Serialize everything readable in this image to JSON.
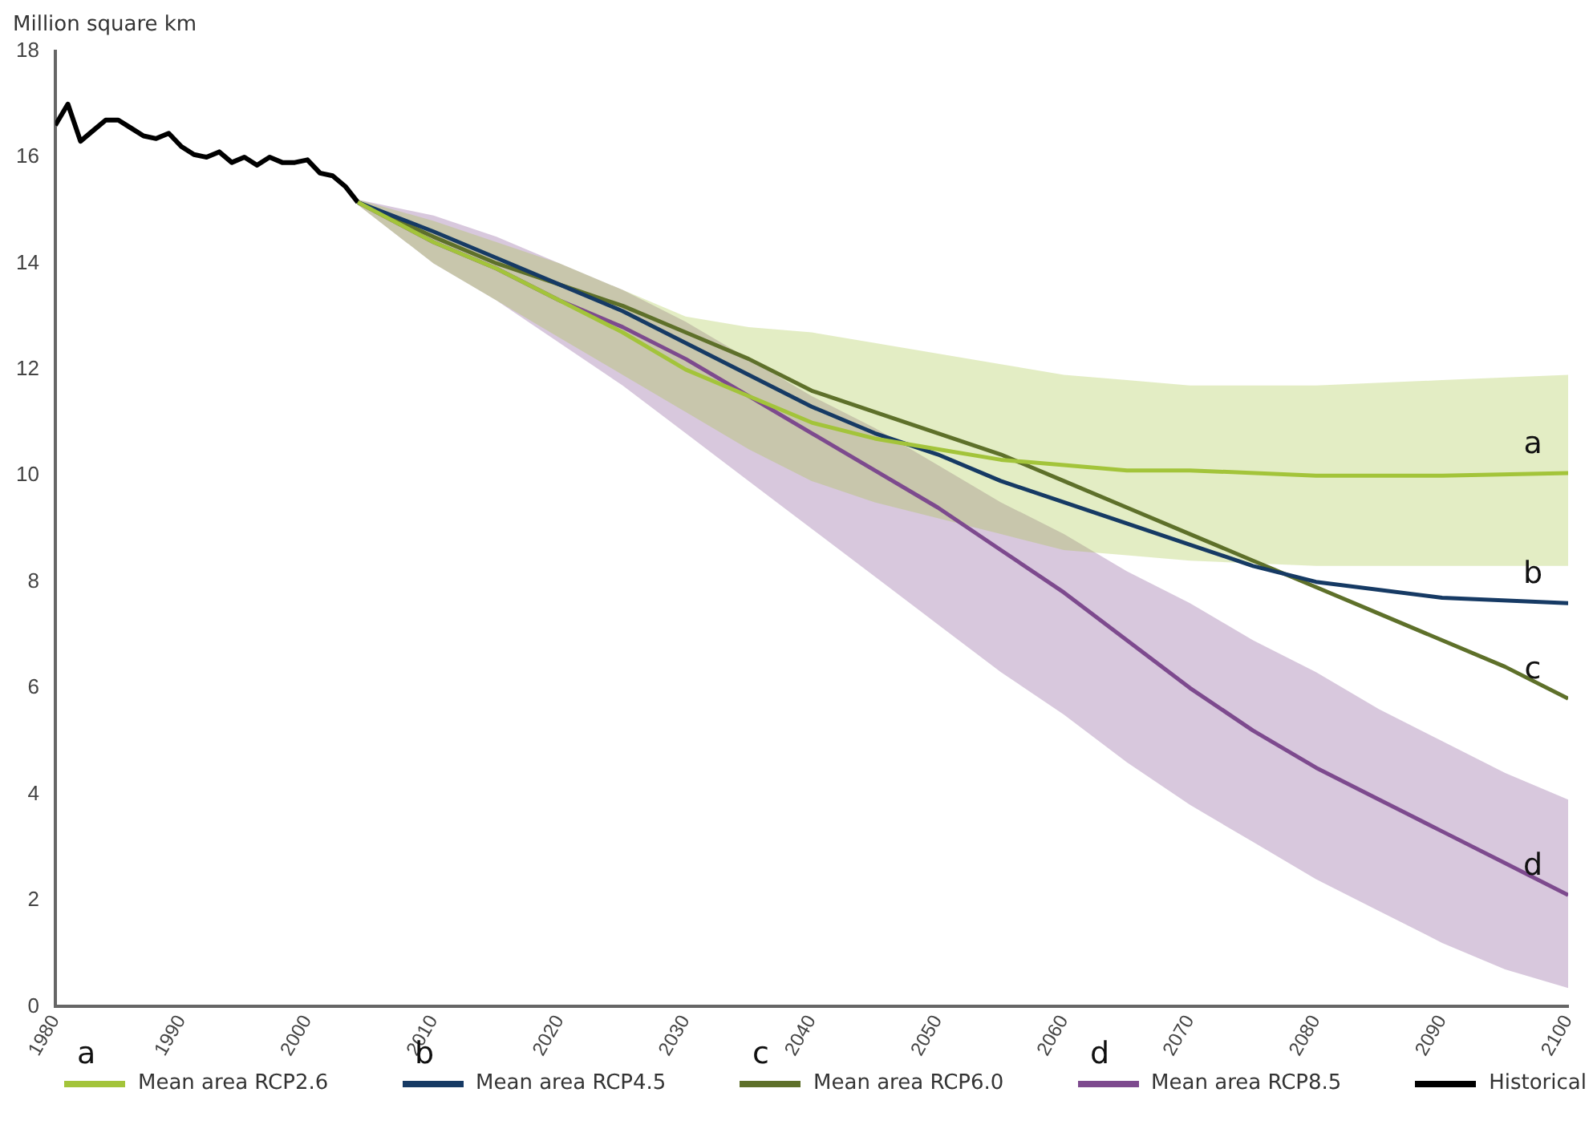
{
  "chart_data": {
    "type": "line",
    "ylabel": "Million square km",
    "xlim": [
      1980,
      2100
    ],
    "ylim": [
      0,
      18
    ],
    "xticks": [
      1980,
      1990,
      2000,
      2010,
      2020,
      2030,
      2040,
      2050,
      2060,
      2070,
      2080,
      2090,
      2100
    ],
    "yticks": [
      0,
      2,
      4,
      6,
      8,
      10,
      12,
      14,
      16,
      18
    ],
    "grid": false,
    "legend": "bottom",
    "marker": "none",
    "line_style": "solid",
    "series": [
      {
        "name": "Mean area RCP2.6",
        "color": "#a3c43a",
        "x": [
          2004,
          2010,
          2015,
          2020,
          2025,
          2030,
          2035,
          2040,
          2045,
          2050,
          2055,
          2060,
          2065,
          2070,
          2080,
          2090,
          2100
        ],
        "values": [
          15.15,
          14.4,
          13.9,
          13.3,
          12.7,
          12.0,
          11.5,
          11.0,
          10.7,
          10.5,
          10.3,
          10.2,
          10.1,
          10.1,
          10.0,
          10.0,
          10.05
        ],
        "lower": [
          15.1,
          14.0,
          13.3,
          12.6,
          11.9,
          11.2,
          10.5,
          9.9,
          9.5,
          9.2,
          8.9,
          8.6,
          8.5,
          8.4,
          8.3,
          8.3,
          8.3
        ],
        "upper": [
          15.2,
          14.8,
          14.4,
          14.0,
          13.5,
          13.0,
          12.8,
          12.7,
          12.5,
          12.3,
          12.1,
          11.9,
          11.8,
          11.7,
          11.7,
          11.8,
          11.9
        ]
      },
      {
        "name": "Mean area RCP4.5",
        "color": "#163a64",
        "x": [
          2004,
          2010,
          2015,
          2020,
          2025,
          2030,
          2035,
          2040,
          2045,
          2050,
          2055,
          2060,
          2065,
          2070,
          2075,
          2080,
          2090,
          2100
        ],
        "values": [
          15.15,
          14.6,
          14.1,
          13.6,
          13.1,
          12.5,
          11.9,
          11.3,
          10.8,
          10.4,
          9.9,
          9.5,
          9.1,
          8.7,
          8.3,
          8.0,
          7.7,
          7.6
        ]
      },
      {
        "name": "Mean area RCP6.0",
        "color": "#5e702a",
        "x": [
          2004,
          2010,
          2015,
          2020,
          2025,
          2030,
          2035,
          2040,
          2045,
          2050,
          2055,
          2060,
          2065,
          2070,
          2075,
          2080,
          2085,
          2090,
          2095,
          2100
        ],
        "values": [
          15.15,
          14.5,
          14.0,
          13.6,
          13.2,
          12.7,
          12.2,
          11.6,
          11.2,
          10.8,
          10.4,
          9.9,
          9.4,
          8.9,
          8.4,
          7.9,
          7.4,
          6.9,
          6.4,
          5.8
        ]
      },
      {
        "name": "Mean area RCP8.5",
        "color": "#7d4a8e",
        "x": [
          2004,
          2010,
          2015,
          2020,
          2025,
          2030,
          2035,
          2040,
          2045,
          2050,
          2055,
          2060,
          2065,
          2070,
          2075,
          2080,
          2085,
          2090,
          2095,
          2100
        ],
        "values": [
          15.15,
          14.4,
          13.9,
          13.3,
          12.8,
          12.2,
          11.5,
          10.8,
          10.1,
          9.4,
          8.6,
          7.8,
          6.9,
          6.0,
          5.2,
          4.5,
          3.9,
          3.3,
          2.7,
          2.1
        ],
        "lower": [
          15.1,
          14.0,
          13.3,
          12.5,
          11.7,
          10.8,
          9.9,
          9.0,
          8.1,
          7.2,
          6.3,
          5.5,
          4.6,
          3.8,
          3.1,
          2.4,
          1.8,
          1.2,
          0.7,
          0.35
        ],
        "upper": [
          15.2,
          14.9,
          14.5,
          14.0,
          13.5,
          12.9,
          12.2,
          11.5,
          10.9,
          10.2,
          9.5,
          8.9,
          8.2,
          7.6,
          6.9,
          6.3,
          5.6,
          5.0,
          4.4,
          3.9
        ]
      },
      {
        "name": "Historical",
        "color": "#000000",
        "x": [
          1980,
          1981,
          1982,
          1983,
          1984,
          1985,
          1986,
          1987,
          1988,
          1989,
          1990,
          1991,
          1992,
          1993,
          1994,
          1995,
          1996,
          1997,
          1998,
          1999,
          2000,
          2001,
          2002,
          2003,
          2004
        ],
        "values": [
          16.6,
          17.0,
          16.3,
          16.5,
          16.7,
          16.7,
          16.55,
          16.4,
          16.35,
          16.45,
          16.2,
          16.05,
          16.0,
          16.1,
          15.9,
          16.0,
          15.85,
          16.0,
          15.9,
          15.9,
          15.95,
          15.7,
          15.65,
          15.45,
          15.15
        ]
      }
    ],
    "annotations": [
      "a",
      "b",
      "c",
      "d"
    ]
  }
}
